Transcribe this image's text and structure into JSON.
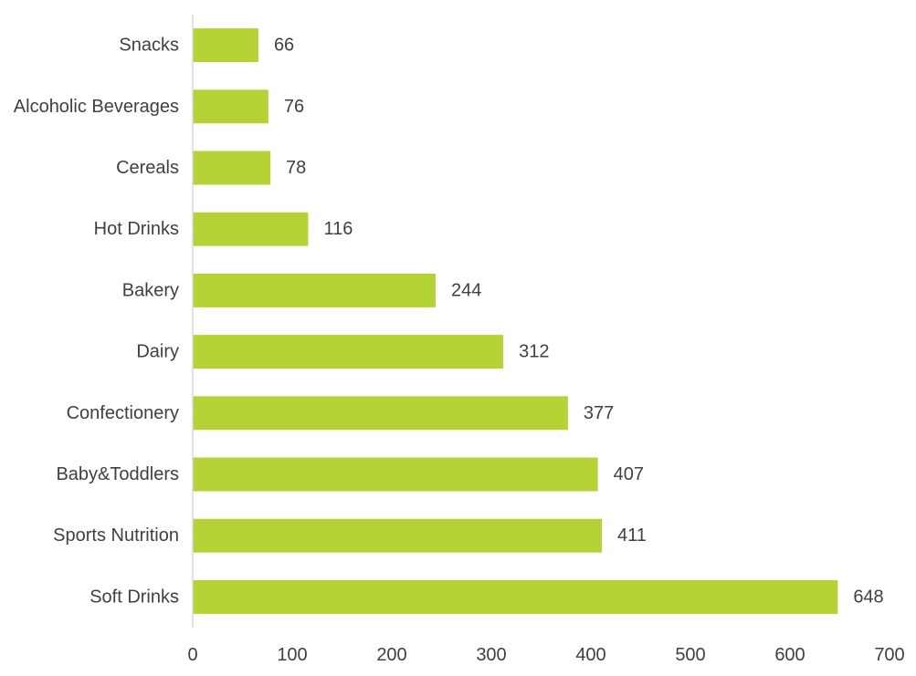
{
  "chart_data": {
    "type": "bar",
    "orientation": "horizontal",
    "categories": [
      "Snacks",
      "Alcoholic Beverages",
      "Cereals",
      "Hot Drinks",
      "Bakery",
      "Dairy",
      "Confectionery",
      "Baby&Toddlers",
      "Sports Nutrition",
      "Soft Drinks"
    ],
    "values": [
      66,
      76,
      78,
      116,
      244,
      312,
      377,
      407,
      411,
      648
    ],
    "title": "",
    "xlabel": "",
    "ylabel": "",
    "xlim": [
      0,
      700
    ],
    "xticks": [
      0,
      100,
      200,
      300,
      400,
      500,
      600,
      700
    ],
    "grid": false,
    "legend": "none",
    "data_labels": true,
    "bar_color": "#b5d334",
    "axis_color": "#d9d9d9",
    "text_color": "#404040"
  }
}
